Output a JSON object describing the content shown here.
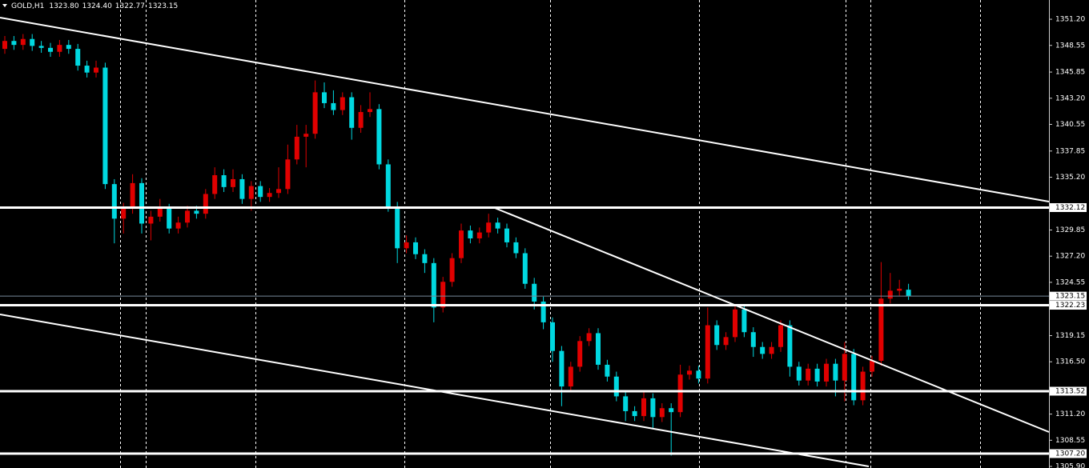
{
  "chart_data": {
    "type": "candlestick",
    "title": "GOLD,H1",
    "header_values": [
      "1323.80",
      "1324.40",
      "1322.77",
      "1323.15"
    ],
    "up_color": "#e00000",
    "down_color": "#00d8e0",
    "ylim": [
      1305.74,
      1353.15
    ],
    "yticks": [
      {
        "value": 1351.2,
        "label": "1351.20"
      },
      1348.55,
      1345.85,
      {
        "value": 1343.2,
        "label": "1343.20"
      },
      1340.55,
      1337.85,
      {
        "value": 1335.2,
        "label": "1335.20"
      },
      1329.85,
      {
        "value": 1327.2,
        "label": "1327.20"
      },
      1324.55,
      1319.15,
      {
        "value": 1316.5,
        "label": "1316.50"
      },
      {
        "value": 1311.2,
        "label": "1311.20"
      },
      1308.55,
      {
        "value": 1305.9,
        "label": "1305.90"
      }
    ],
    "levels": [
      1332.12,
      1322.23,
      1313.52,
      {
        "value": 1307.2,
        "label": "1307.20"
      }
    ],
    "price_line": 1323.15,
    "open": [
      1348.2,
      1349.0,
      1348.6,
      1349.2,
      1348.5,
      1348.3,
      1347.9,
      1348.6,
      1348.2,
      1346.5,
      1345.8,
      1346.3,
      1334.5,
      1331.0,
      1332.0,
      1334.6,
      1330.5,
      1331.2,
      1332.0,
      1330.0,
      1330.6,
      1331.8,
      1331.5,
      1333.5,
      1335.4,
      1334.2,
      1335.0,
      1333.0,
      1334.3,
      1333.2,
      1333.6,
      1334.0,
      1337.0,
      1339.3,
      1339.6,
      1343.8,
      1342.7,
      1342.0,
      1343.3,
      1340.2,
      1341.8,
      1342.1,
      1336.5,
      1332.2,
      1328.0,
      1328.6,
      1327.4,
      1326.5,
      1322.0,
      1324.6,
      1327.0,
      1329.8,
      1329.0,
      1329.6,
      1330.6,
      1330.0,
      1328.6,
      1327.5,
      1324.4,
      1322.6,
      1320.5,
      1317.6,
      1314.0,
      1316.0,
      1318.6,
      1319.4,
      1316.2,
      1315.0,
      1313.0,
      1311.5,
      1311.0,
      1312.8,
      1310.9,
      1311.8,
      1311.4,
      1315.2,
      1315.6,
      1314.8,
      1320.2,
      1318.2,
      1319.0,
      1321.8,
      1319.5,
      1318.0,
      1317.3,
      1318.0,
      1320.2,
      1316.0,
      1314.6,
      1315.8,
      1314.5,
      1316.3,
      1314.6,
      1317.3,
      1312.6,
      1315.5,
      1316.6,
      1322.9,
      1323.7,
      1323.8
    ],
    "high": [
      1349.5,
      1349.5,
      1349.7,
      1349.7,
      1349.0,
      1348.8,
      1349.1,
      1349.1,
      1348.7,
      1347.0,
      1347.0,
      1346.8,
      1335.0,
      1332.6,
      1335.5,
      1335.1,
      1331.8,
      1333.0,
      1332.5,
      1331.2,
      1332.3,
      1332.3,
      1334.0,
      1336.2,
      1336.0,
      1336.0,
      1335.5,
      1334.8,
      1334.8,
      1334.1,
      1336.2,
      1338.5,
      1340.5,
      1340.5,
      1345.0,
      1344.8,
      1344.0,
      1343.8,
      1343.8,
      1342.5,
      1343.8,
      1342.6,
      1337.0,
      1332.7,
      1329.3,
      1329.1,
      1327.9,
      1327.0,
      1325.1,
      1327.5,
      1330.5,
      1330.3,
      1330.1,
      1331.5,
      1331.1,
      1330.5,
      1329.1,
      1328.0,
      1325.0,
      1323.1,
      1321.0,
      1318.1,
      1316.5,
      1319.1,
      1319.9,
      1319.9,
      1316.7,
      1315.5,
      1313.5,
      1312.0,
      1313.5,
      1313.3,
      1312.3,
      1312.3,
      1316.2,
      1316.1,
      1316.1,
      1322.0,
      1320.7,
      1319.5,
      1322.3,
      1322.3,
      1320.0,
      1318.5,
      1318.5,
      1320.7,
      1320.7,
      1316.5,
      1316.3,
      1316.3,
      1316.8,
      1316.8,
      1318.5,
      1317.8,
      1316.0,
      1317.1,
      1326.6,
      1325.5,
      1324.8,
      1324.4
    ],
    "low": [
      1347.7,
      1348.1,
      1348.1,
      1348.0,
      1347.8,
      1347.4,
      1347.4,
      1347.7,
      1346.0,
      1345.3,
      1345.3,
      1334.0,
      1328.5,
      1329.5,
      1331.5,
      1329.5,
      1328.8,
      1330.7,
      1329.5,
      1329.5,
      1330.1,
      1331.0,
      1331.0,
      1333.0,
      1333.7,
      1333.7,
      1332.5,
      1331.8,
      1332.7,
      1332.7,
      1333.1,
      1333.5,
      1336.5,
      1336.2,
      1339.1,
      1342.2,
      1341.5,
      1341.5,
      1339.0,
      1339.7,
      1341.3,
      1336.0,
      1331.7,
      1326.5,
      1327.5,
      1326.9,
      1325.5,
      1320.5,
      1321.5,
      1324.1,
      1326.5,
      1328.5,
      1328.5,
      1329.1,
      1329.5,
      1328.1,
      1327.0,
      1323.9,
      1321.8,
      1319.8,
      1316.5,
      1312.0,
      1313.5,
      1315.5,
      1318.1,
      1315.7,
      1314.5,
      1312.5,
      1310.5,
      1310.5,
      1310.5,
      1309.8,
      1310.4,
      1307.0,
      1310.9,
      1314.7,
      1314.3,
      1314.3,
      1317.7,
      1317.7,
      1318.5,
      1319.0,
      1317.0,
      1316.8,
      1316.8,
      1317.5,
      1315.0,
      1314.1,
      1314.1,
      1314.0,
      1314.0,
      1313.0,
      1312.5,
      1312.1,
      1312.1,
      1315.0,
      1316.1,
      1322.4,
      1323.2,
      1322.77
    ],
    "close": [
      1349.0,
      1348.6,
      1349.2,
      1348.5,
      1348.3,
      1347.9,
      1348.6,
      1348.2,
      1346.5,
      1345.8,
      1346.3,
      1334.5,
      1331.0,
      1332.0,
      1334.6,
      1330.5,
      1331.2,
      1332.0,
      1330.0,
      1330.6,
      1331.8,
      1331.5,
      1333.5,
      1335.4,
      1334.2,
      1335.0,
      1333.0,
      1334.3,
      1333.2,
      1333.6,
      1334.0,
      1337.0,
      1339.3,
      1339.6,
      1343.8,
      1342.7,
      1342.0,
      1343.3,
      1340.2,
      1341.8,
      1342.1,
      1336.5,
      1332.2,
      1328.0,
      1328.6,
      1327.4,
      1326.5,
      1322.0,
      1324.6,
      1327.0,
      1329.8,
      1329.0,
      1329.6,
      1330.6,
      1330.0,
      1328.6,
      1327.5,
      1324.4,
      1322.6,
      1320.5,
      1317.6,
      1314.0,
      1316.0,
      1318.6,
      1319.4,
      1316.2,
      1315.0,
      1313.0,
      1311.5,
      1311.0,
      1312.8,
      1310.9,
      1311.8,
      1311.4,
      1315.2,
      1315.6,
      1314.8,
      1320.2,
      1318.2,
      1319.0,
      1321.8,
      1319.5,
      1318.0,
      1317.3,
      1318.0,
      1320.2,
      1316.0,
      1314.6,
      1315.8,
      1314.5,
      1316.3,
      1314.6,
      1317.3,
      1312.6,
      1315.5,
      1316.6,
      1322.9,
      1323.7,
      1323.9,
      1323.15
    ]
  }
}
